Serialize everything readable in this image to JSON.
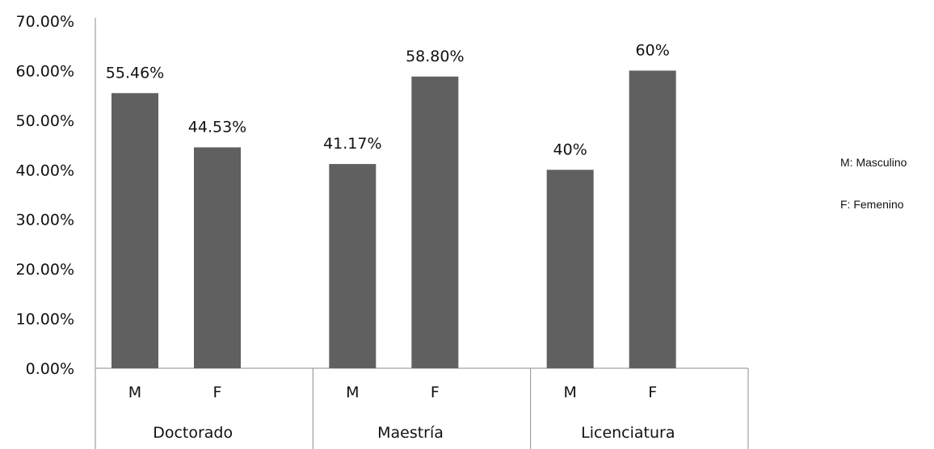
{
  "chart_data": {
    "type": "bar",
    "title": "",
    "xlabel": "",
    "ylabel": "",
    "ylim": [
      0,
      0.7
    ],
    "y_ticks": [
      "0.00%",
      "10.00%",
      "20.00%",
      "30.00%",
      "40.00%",
      "50.00%",
      "60.00%",
      "70.00%"
    ],
    "grid": false,
    "groups": [
      {
        "label": "Doctorado",
        "bars": [
          {
            "category": "M",
            "value": 0.5546,
            "label": "55.46%"
          },
          {
            "category": "F",
            "value": 0.4453,
            "label": "44.53%"
          }
        ]
      },
      {
        "label": "Maestría",
        "bars": [
          {
            "category": "M",
            "value": 0.4117,
            "label": "41.17%"
          },
          {
            "category": "F",
            "value": 0.588,
            "label": "58.80%"
          }
        ]
      },
      {
        "label": "Licenciatura",
        "bars": [
          {
            "category": "M",
            "value": 0.4,
            "label": "40%"
          },
          {
            "category": "F",
            "value": 0.6,
            "label": "60%"
          }
        ]
      }
    ],
    "bar_color": "#606060",
    "axis_color": "#8c8c8c"
  },
  "legend": {
    "m_text": "M: Masculino",
    "f_text": "F: Femenino",
    "placement": "right"
  }
}
